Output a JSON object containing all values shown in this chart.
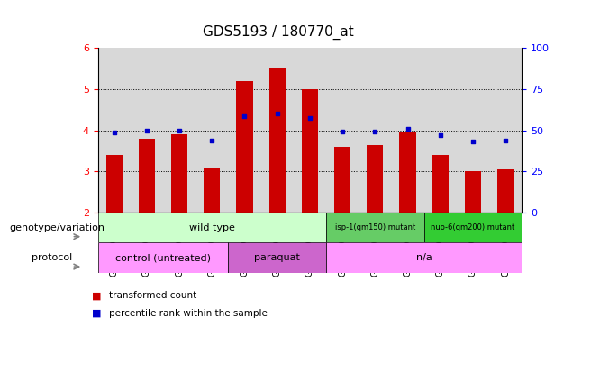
{
  "title": "GDS5193 / 180770_at",
  "samples": [
    "GSM1305989",
    "GSM1305990",
    "GSM1305991",
    "GSM1305992",
    "GSM1305999",
    "GSM1306000",
    "GSM1306001",
    "GSM1305993",
    "GSM1305994",
    "GSM1305995",
    "GSM1305996",
    "GSM1305997",
    "GSM1305998"
  ],
  "red_values": [
    3.4,
    3.8,
    3.9,
    3.1,
    5.2,
    5.5,
    5.0,
    3.6,
    3.65,
    3.95,
    3.4,
    3.0,
    3.05
  ],
  "blue_values": [
    3.95,
    4.0,
    4.0,
    3.75,
    4.35,
    4.4,
    4.3,
    3.97,
    3.98,
    4.03,
    3.88,
    3.73,
    3.75
  ],
  "ylim_left": [
    2,
    6
  ],
  "ylim_right": [
    0,
    100
  ],
  "yticks_left": [
    2,
    3,
    4,
    5,
    6
  ],
  "yticks_right": [
    0,
    25,
    50,
    75,
    100
  ],
  "bar_bottom": 2.0,
  "bar_width": 0.5,
  "bar_color": "#cc0000",
  "dot_color": "#0000cc",
  "col_bg": "#d8d8d8",
  "plot_bg": "#ffffff",
  "wt_color": "#ccffcc",
  "isp_color": "#66cc66",
  "nuo_color": "#33cc33",
  "ctrl_color": "#ff99ff",
  "para_color": "#cc66cc",
  "na_color": "#ff99ff",
  "wt_label": "wild type",
  "isp_label": "isp-1(qm150) mutant",
  "nuo_label": "nuo-6(qm200) mutant",
  "ctrl_label": "control (untreated)",
  "para_label": "paraquat",
  "na_label": "n/a",
  "legend_red": "transformed count",
  "legend_blue": "percentile rank within the sample",
  "label_genotype": "genotype/variation",
  "label_protocol": "protocol",
  "title_fontsize": 11,
  "tick_fontsize": 7,
  "label_fontsize": 8,
  "row_label_fontsize": 8
}
